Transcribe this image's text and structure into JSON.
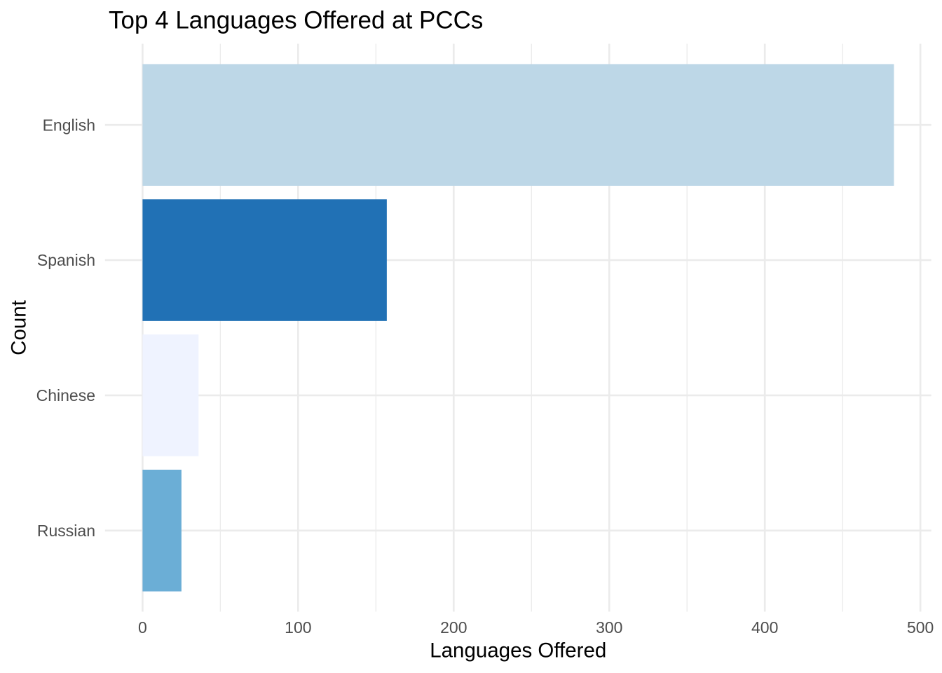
{
  "page": {
    "background": "#FFFFFF"
  },
  "chart_data": {
    "type": "bar",
    "orientation": "horizontal",
    "title": "Top 4 Languages Offered at PCCs",
    "xlabel": "Languages Offered",
    "ylabel": "Count",
    "categories": [
      "English",
      "Spanish",
      "Chinese",
      "Russian"
    ],
    "values": [
      483,
      157,
      36,
      25
    ],
    "bar_colors": [
      "#BDD7E7",
      "#2171B5",
      "#EFF3FF",
      "#6BAED6"
    ],
    "x_ticks": [
      0,
      100,
      200,
      300,
      400,
      500
    ],
    "x_tick_labels": [
      "0",
      "100",
      "200",
      "300",
      "400",
      "500"
    ],
    "x_minor_ticks": [
      50,
      150,
      250,
      350,
      450
    ],
    "xlim": [
      0,
      500
    ],
    "grid": true,
    "legend": "none",
    "style": {
      "palette": "Blues",
      "grid_color": "#EBEBEB",
      "axis_text_color": "#4D4D4D",
      "title_color": "#000000",
      "axis_title_color": "#000000",
      "panel_background": "#FFFFFF"
    }
  }
}
